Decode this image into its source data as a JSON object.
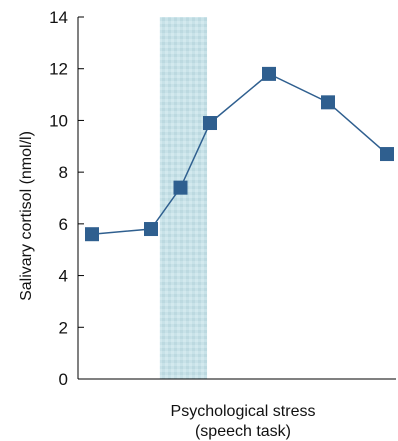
{
  "chart_data": {
    "type": "line",
    "title": "",
    "xlabel_lines": [
      "Psychological stress",
      "(speech task)"
    ],
    "ylabel": "Salivary cortisol (nmol/l)",
    "ylim": [
      0,
      14
    ],
    "yticks": [
      0,
      2,
      4,
      6,
      8,
      10,
      12,
      14
    ],
    "grid": false,
    "x_ticks_labeled": false,
    "stress_period": [
      1.15,
      1.95
    ],
    "series": [
      {
        "color": "#2f5f8f",
        "marker": "square",
        "points": [
          {
            "x": 0,
            "y": 5.6
          },
          {
            "x": 1,
            "y": 5.8
          },
          {
            "x": 1.5,
            "y": 7.4
          },
          {
            "x": 2,
            "y": 9.9
          },
          {
            "x": 3,
            "y": 11.8
          },
          {
            "x": 4,
            "y": 10.7
          },
          {
            "x": 5,
            "y": 8.7
          }
        ]
      }
    ],
    "colors": {
      "stress_band": "#c5e0e6",
      "axis": "#000000"
    }
  }
}
